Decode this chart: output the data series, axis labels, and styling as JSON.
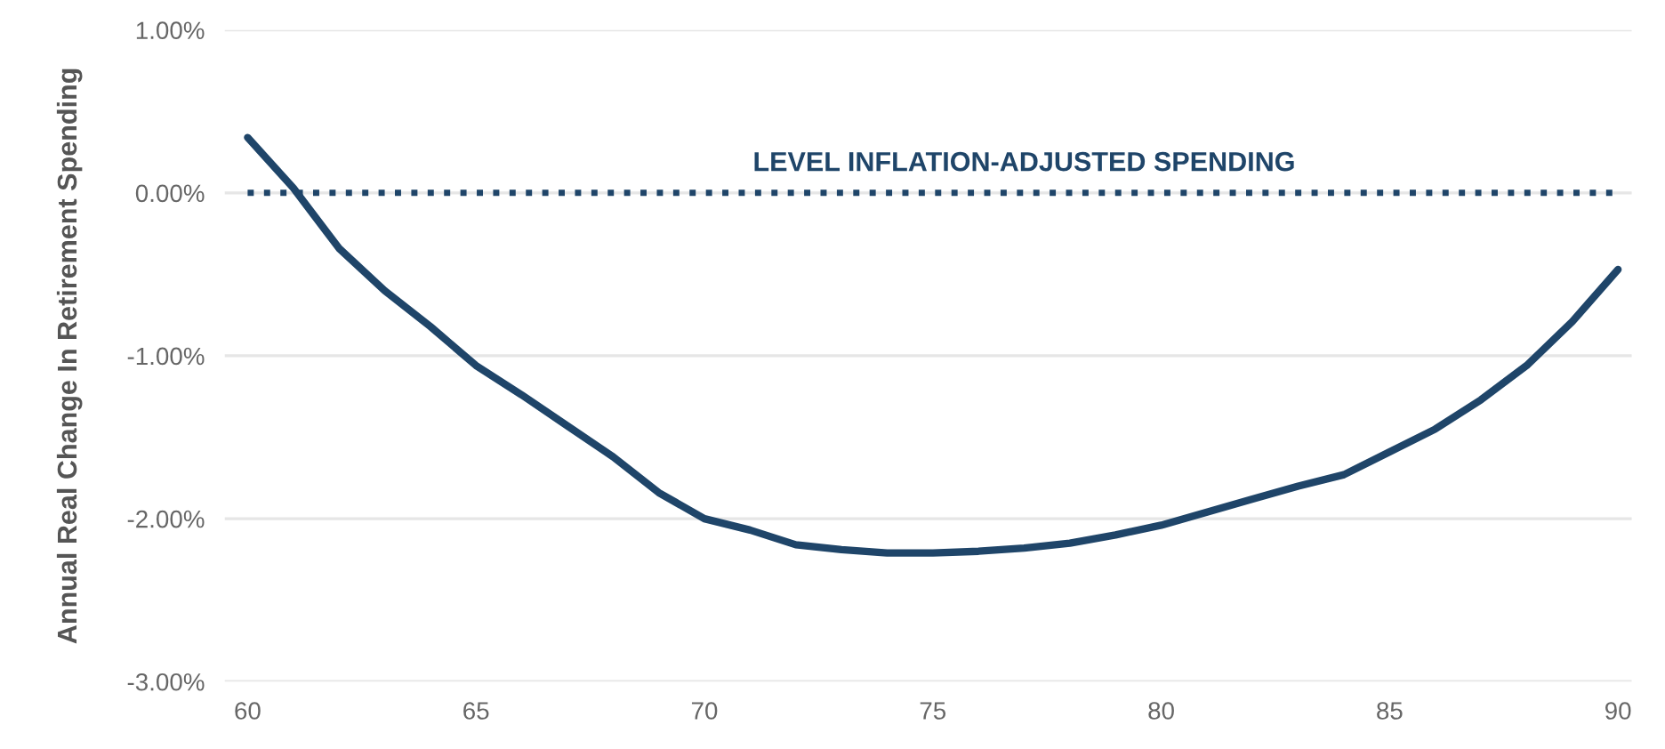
{
  "chart_data": {
    "type": "line",
    "ylabel": "Annual Real Change In Retirement Spending",
    "x": [
      60,
      61,
      62,
      63,
      64,
      65,
      66,
      67,
      68,
      69,
      70,
      71,
      72,
      73,
      74,
      75,
      76,
      77,
      78,
      79,
      80,
      81,
      82,
      83,
      84,
      85,
      86,
      87,
      88,
      89,
      90
    ],
    "series": [
      {
        "color": "#1f4569",
        "values": [
          0.34,
          0.03,
          -0.34,
          -0.6,
          -0.82,
          -1.06,
          -1.24,
          -1.43,
          -1.62,
          -1.84,
          -2.0,
          -2.07,
          -2.16,
          -2.19,
          -2.21,
          -2.21,
          -2.2,
          -2.18,
          -2.15,
          -2.1,
          -2.04,
          -1.96,
          -1.88,
          -1.8,
          -1.73,
          -1.59,
          -1.45,
          -1.27,
          -1.06,
          -0.79,
          -0.47
        ]
      }
    ],
    "xlim": [
      59.5,
      90.3
    ],
    "xticks": [
      60,
      65,
      70,
      75,
      80,
      85,
      90
    ],
    "ylim": [
      -3,
      1
    ],
    "yticks": [
      {
        "value": 1,
        "label": "1.00%"
      },
      {
        "value": 0,
        "label": "0.00%"
      },
      {
        "value": -1,
        "label": "-1.00%"
      },
      {
        "value": -2,
        "label": "-2.00%"
      },
      {
        "value": -3,
        "label": "-3.00%"
      }
    ],
    "grid": "y",
    "line_style": "solid",
    "marker": "none",
    "ref_lines": [
      {
        "axis": "y",
        "value": 0,
        "label": "LEVEL INFLATION-ADJUSTED SPENDING",
        "color": "#1f4569",
        "line_style": "dotted"
      }
    ]
  }
}
